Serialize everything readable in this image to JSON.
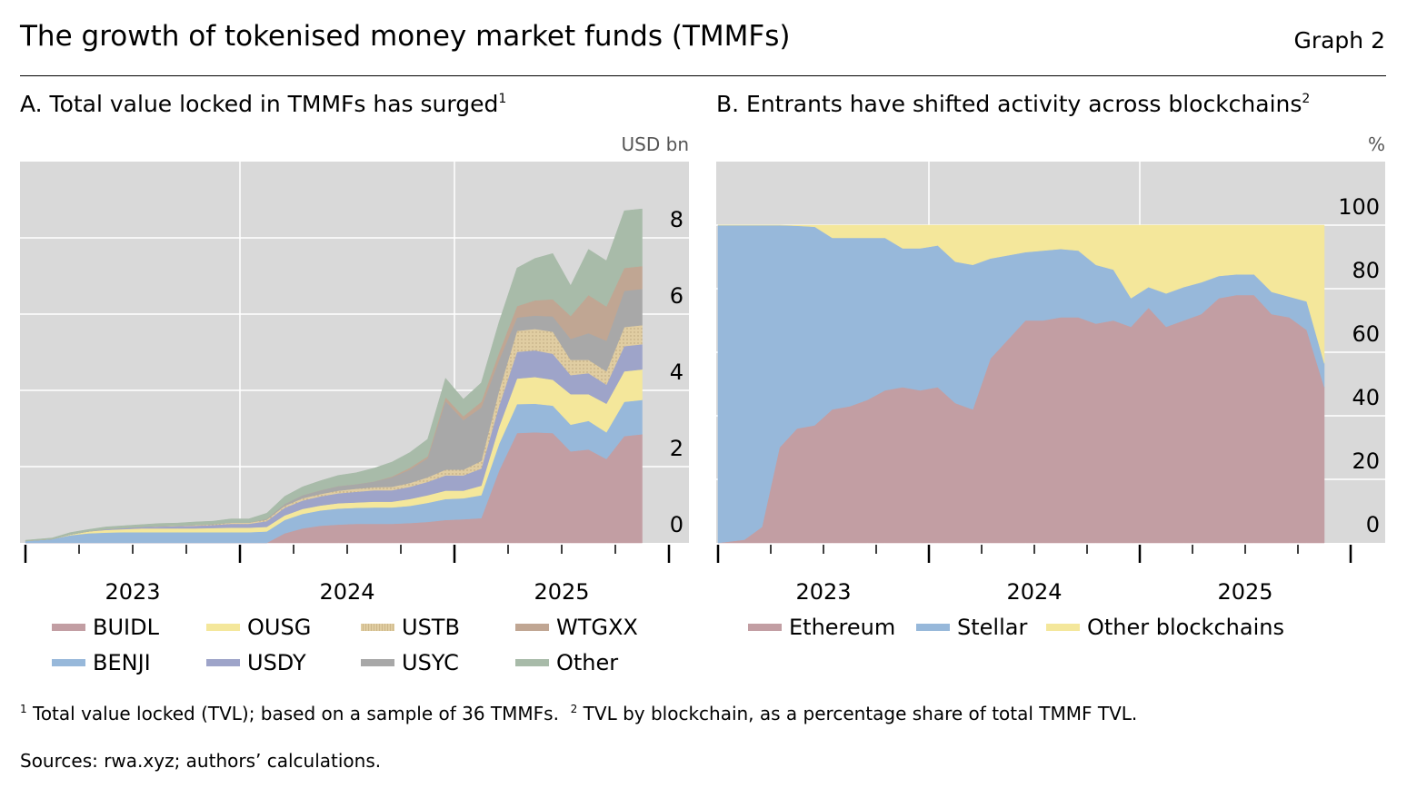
{
  "header": {
    "title": "The growth of tokenised money market funds (TMMFs)",
    "graph_label": "Graph 2"
  },
  "footnotes": {
    "note1_mark": "1",
    "note1": "Total value locked (TVL); based on a sample of 36 TMMFs.",
    "note2_mark": "2",
    "note2": "TVL by blockchain, as a percentage share of total TMMF TVL.",
    "sources": "Sources: rwa.xyz; authors’ calculations."
  },
  "chart_data": [
    {
      "type": "area",
      "stacked": true,
      "title": "A. Total value locked in TMMFs has surged",
      "title_note": "1",
      "ylabel": "USD bn",
      "ylim": [
        0,
        10
      ],
      "yticks": [
        0,
        2,
        4,
        6,
        8
      ],
      "ytick_labels": [
        "0",
        "2",
        "4",
        "6",
        "8"
      ],
      "xlim": [
        "2023-01",
        "2026-01"
      ],
      "xtick_labels": [
        "2023",
        "2024",
        "2025"
      ],
      "grid": true,
      "background": "#d9d9d9",
      "legend_position": "bottom",
      "x": [
        "2023-01",
        "2023-02",
        "2023-03",
        "2023-04",
        "2023-05",
        "2023-06",
        "2023-07",
        "2023-08",
        "2023-09",
        "2023-10",
        "2023-11",
        "2023-12",
        "2024-01",
        "2024-02",
        "2024-03",
        "2024-04",
        "2024-05",
        "2024-06",
        "2024-07",
        "2024-08",
        "2024-09",
        "2024-10",
        "2024-11",
        "2024-12",
        "2025-01",
        "2025-02",
        "2025-03",
        "2025-04",
        "2025-05",
        "2025-06",
        "2025-07",
        "2025-08",
        "2025-09",
        "2025-10",
        "2025-11"
      ],
      "series": [
        {
          "name": "BUIDL",
          "color": "#c29ea3",
          "values": [
            0,
            0,
            0,
            0,
            0,
            0,
            0,
            0,
            0,
            0,
            0,
            0,
            0,
            0,
            0.25,
            0.38,
            0.45,
            0.48,
            0.5,
            0.5,
            0.5,
            0.52,
            0.55,
            0.6,
            0.62,
            0.65,
            1.9,
            2.88,
            2.9,
            2.88,
            2.4,
            2.45,
            2.2,
            2.8,
            2.85
          ]
        },
        {
          "name": "BENJI",
          "color": "#97b8da",
          "values": [
            0.05,
            0.1,
            0.2,
            0.25,
            0.27,
            0.28,
            0.28,
            0.28,
            0.28,
            0.28,
            0.28,
            0.28,
            0.28,
            0.3,
            0.35,
            0.38,
            0.4,
            0.42,
            0.42,
            0.43,
            0.43,
            0.45,
            0.5,
            0.55,
            0.55,
            0.6,
            0.7,
            0.76,
            0.75,
            0.72,
            0.7,
            0.75,
            0.7,
            0.9,
            0.9
          ]
        },
        {
          "name": "OUSG",
          "color": "#f4e79b",
          "values": [
            0,
            0,
            0.02,
            0.05,
            0.07,
            0.08,
            0.1,
            0.1,
            0.1,
            0.1,
            0.11,
            0.12,
            0.12,
            0.12,
            0.12,
            0.13,
            0.13,
            0.14,
            0.14,
            0.15,
            0.15,
            0.18,
            0.2,
            0.22,
            0.2,
            0.25,
            0.45,
            0.67,
            0.7,
            0.68,
            0.8,
            0.7,
            0.75,
            0.8,
            0.8
          ]
        },
        {
          "name": "USDY",
          "color": "#9ea4c9",
          "values": [
            0,
            0,
            0,
            0,
            0.02,
            0.03,
            0.04,
            0.05,
            0.06,
            0.07,
            0.08,
            0.1,
            0.1,
            0.15,
            0.2,
            0.22,
            0.24,
            0.26,
            0.28,
            0.3,
            0.3,
            0.32,
            0.35,
            0.4,
            0.4,
            0.45,
            0.55,
            0.7,
            0.7,
            0.68,
            0.5,
            0.55,
            0.5,
            0.66,
            0.66
          ]
        },
        {
          "name": "USTB",
          "color": "#e0cda2",
          "values": [
            0,
            0,
            0,
            0,
            0,
            0,
            0,
            0.01,
            0.01,
            0.02,
            0.02,
            0.03,
            0.03,
            0.04,
            0.05,
            0.06,
            0.06,
            0.07,
            0.08,
            0.08,
            0.09,
            0.1,
            0.12,
            0.15,
            0.15,
            0.2,
            0.4,
            0.55,
            0.56,
            0.58,
            0.4,
            0.35,
            0.35,
            0.5,
            0.5
          ]
        },
        {
          "name": "USYC",
          "color": "#a8a8a8",
          "values": [
            0,
            0,
            0,
            0,
            0,
            0,
            0,
            0,
            0,
            0,
            0,
            0,
            0,
            0.02,
            0.05,
            0.08,
            0.1,
            0.12,
            0.12,
            0.15,
            0.25,
            0.35,
            0.5,
            1.8,
            1.3,
            1.4,
            0.8,
            0.35,
            0.35,
            0.4,
            0.55,
            0.7,
            0.8,
            0.95,
            0.95
          ]
        },
        {
          "name": "WTGXX",
          "color": "#c0a693",
          "values": [
            0,
            0,
            0,
            0,
            0,
            0,
            0,
            0,
            0,
            0,
            0,
            0,
            0,
            0,
            0,
            0,
            0,
            0,
            0,
            0,
            0.02,
            0.05,
            0.05,
            0.1,
            0.1,
            0.15,
            0.2,
            0.3,
            0.4,
            0.45,
            0.6,
            1.0,
            0.9,
            0.6,
            0.6
          ]
        },
        {
          "name": "Other",
          "color": "#a8bba9",
          "values": [
            0.02,
            0.03,
            0.05,
            0.05,
            0.06,
            0.06,
            0.06,
            0.07,
            0.07,
            0.08,
            0.08,
            0.1,
            0.1,
            0.15,
            0.2,
            0.22,
            0.25,
            0.28,
            0.3,
            0.35,
            0.38,
            0.4,
            0.45,
            0.5,
            0.45,
            0.5,
            0.8,
            1.0,
            1.1,
            1.2,
            0.8,
            1.2,
            1.2,
            1.5,
            1.5
          ]
        }
      ]
    },
    {
      "type": "area",
      "stacked": true,
      "title": "B. Entrants have shifted activity across blockchains",
      "title_note": "2",
      "ylabel": "%",
      "ylim": [
        0,
        100
      ],
      "yticks": [
        0,
        20,
        40,
        60,
        80,
        100
      ],
      "ytick_labels": [
        "0",
        "20",
        "40",
        "60",
        "80",
        "100"
      ],
      "xlim": [
        "2023-01",
        "2026-01"
      ],
      "xtick_labels": [
        "2023",
        "2024",
        "2025"
      ],
      "grid": true,
      "background": "#d9d9d9",
      "legend_position": "bottom",
      "x": [
        "2023-01",
        "2023-02",
        "2023-03",
        "2023-04",
        "2023-05",
        "2023-06",
        "2023-07",
        "2023-08",
        "2023-09",
        "2023-10",
        "2023-11",
        "2023-12",
        "2024-01",
        "2024-02",
        "2024-03",
        "2024-04",
        "2024-05",
        "2024-06",
        "2024-07",
        "2024-08",
        "2024-09",
        "2024-10",
        "2024-11",
        "2024-12",
        "2025-01",
        "2025-02",
        "2025-03",
        "2025-04",
        "2025-05",
        "2025-06",
        "2025-07",
        "2025-08",
        "2025-09",
        "2025-10",
        "2025-11"
      ],
      "series": [
        {
          "name": "Ethereum",
          "color": "#c29ea3",
          "values": [
            0,
            1,
            5,
            30,
            36,
            37,
            42,
            43,
            45,
            48,
            49,
            48,
            49,
            44,
            42,
            58,
            64,
            70,
            70,
            71,
            71,
            69,
            70,
            68,
            74,
            68,
            70,
            72,
            77,
            78,
            78,
            72,
            71,
            67,
            49
          ]
        },
        {
          "name": "Stellar",
          "color": "#97b8da",
          "values": [
            100,
            99,
            95,
            70,
            63.8,
            62.5,
            54,
            53,
            51,
            48,
            43.7,
            44.7,
            44.6,
            44.5,
            45.5,
            31.5,
            26.5,
            21.5,
            22,
            21.5,
            21,
            18.5,
            16,
            9,
            6.5,
            10.5,
            10.5,
            10,
            7,
            6.5,
            6.5,
            7,
            6.5,
            9,
            7.5
          ]
        },
        {
          "name": "Other blockchains",
          "color": "#f4e79b",
          "values": [
            0,
            0,
            0,
            0,
            0.2,
            0.5,
            4,
            4,
            4,
            4,
            7.3,
            7.3,
            6.4,
            11.5,
            12.5,
            10.5,
            9.5,
            8.5,
            8,
            7.5,
            8,
            12.5,
            14,
            23,
            19.5,
            21.5,
            19.5,
            18,
            16,
            15.5,
            15.5,
            21,
            22.5,
            24,
            43.5
          ]
        }
      ]
    }
  ]
}
